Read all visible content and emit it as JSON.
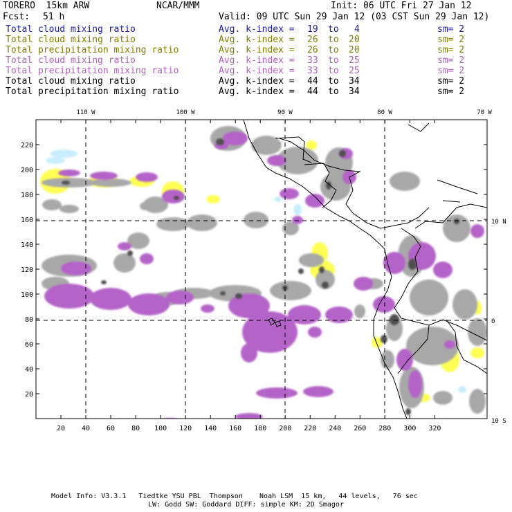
{
  "header": {
    "model": "TORERO  15km ARW",
    "center": "NCAR/MMM",
    "init": "Init: 06 UTC Fri 27 Jan 12",
    "fcst_label": "Fcst:",
    "fcst_value": "51 h",
    "valid": "Valid: 09 UTC Sun 29 Jan 12 (03 CST Sun 29 Jan 12)"
  },
  "legend": [
    {
      "field": "Total cloud mixing ratio",
      "stat": "Avg. k-index =",
      "k_high": "19",
      "to": "to",
      "k_low": "4",
      "sm": "sm= 2",
      "color": "#1a1aa8"
    },
    {
      "field": "Total cloud mixing ratio",
      "stat": "Avg. k-index =",
      "k_high": "26",
      "to": "to",
      "k_low": "20",
      "sm": "sm= 2",
      "color": "#808000"
    },
    {
      "field": "Total precipitation mixing ratio",
      "stat": "Avg. k-index =",
      "k_high": "26",
      "to": "to",
      "k_low": "20",
      "sm": "sm= 2",
      "color": "#808000"
    },
    {
      "field": "Total cloud mixing ratio",
      "stat": "Avg. k-index =",
      "k_high": "33",
      "to": "to",
      "k_low": "25",
      "sm": "sm= 2",
      "color": "#b060c0"
    },
    {
      "field": "Total precipitation mixing ratio",
      "stat": "Avg. k-index =",
      "k_high": "33",
      "to": "to",
      "k_low": "25",
      "sm": "sm= 2",
      "color": "#b060c0"
    },
    {
      "field": "Total cloud mixing ratio",
      "stat": "Avg. k-index =",
      "k_high": "44",
      "to": "to",
      "k_low": "34",
      "sm": "sm= 2",
      "color": "#000000"
    },
    {
      "field": "Total precipitation mixing ratio",
      "stat": "Avg. k-index =",
      "k_high": "44",
      "to": "to",
      "k_low": "34",
      "sm": "sm= 2",
      "color": "#000000"
    }
  ],
  "map": {
    "x_ticks": [
      "20",
      "40",
      "60",
      "80",
      "100",
      "120",
      "140",
      "160",
      "180",
      "200",
      "220",
      "240",
      "260",
      "280",
      "300",
      "320"
    ],
    "y_ticks": [
      "220",
      "200",
      "180",
      "160",
      "140",
      "120",
      "100",
      "80",
      "60",
      "40",
      "20"
    ],
    "lon_labels": [
      "110 W",
      "100 W",
      "90 W",
      "80 W",
      "70 W"
    ],
    "lat_labels": [
      "10 N",
      "0",
      "10 S"
    ],
    "colors": {
      "yellow": "#ffff55",
      "light_blue": "#c8eeff",
      "gray": "#a8a8a8",
      "dark_gray": "#505050",
      "purple": "#b464c8"
    }
  },
  "footer": {
    "line1": "Model Info: V3.3.1   Tiedtke YSU PBL  Thompson    Noah LSM  15 km,   44 levels,   76 sec",
    "line2": "LW: Godd SW: Goddard DIFF: simple KM: 2D Smagor"
  }
}
